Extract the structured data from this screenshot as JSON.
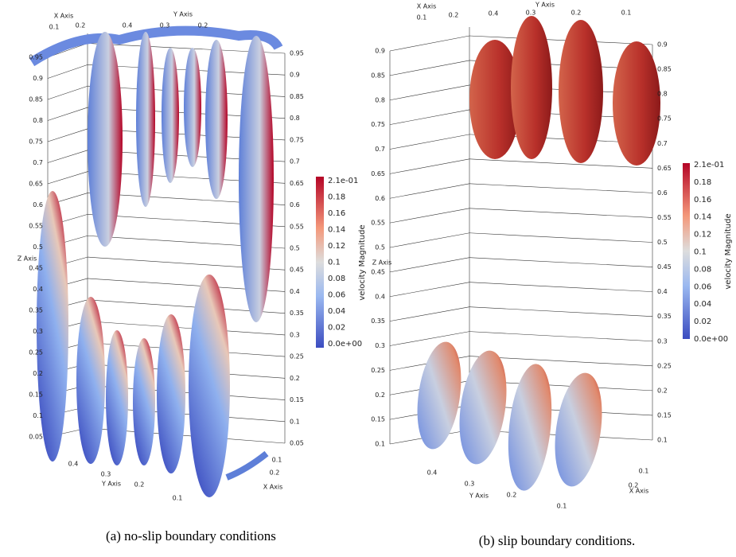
{
  "panels": [
    {
      "caption": "(a) no-slip boundary conditions",
      "axis_titles": {
        "x": "X Axis",
        "y": "Y Axis",
        "z": "Z Axis",
        "x_bottom": "X Axis",
        "y_bottom": "Y Axis"
      },
      "z_ticks_left": [
        "0.05",
        "0.1",
        "0.15",
        "0.2",
        "0.25",
        "0.3",
        "0.35",
        "0.4",
        "0.45",
        "0.5",
        "0.55",
        "0.6",
        "0.65",
        "0.7",
        "0.75",
        "0.8",
        "0.85",
        "0.9",
        "0.95"
      ],
      "z_ticks_right": [
        "0.05",
        "0.1",
        "0.15",
        "0.2",
        "0.25",
        "0.3",
        "0.35",
        "0.4",
        "0.45",
        "0.5",
        "0.55",
        "0.6",
        "0.65",
        "0.7",
        "0.75",
        "0.8",
        "0.85",
        "0.9",
        "0.95"
      ],
      "top_ticks": [
        "0.1",
        "0.2",
        "0.4",
        "0.3",
        "0.2"
      ],
      "bottom_ticks": [
        "0.4",
        "0.3",
        "0.2",
        "0.1",
        "0.1",
        "0.2"
      ],
      "colorbar": {
        "title": "velocity Magnitude",
        "ticks": [
          "2.1e-01",
          "0.18",
          "0.16",
          "0.14",
          "0.12",
          "0.1",
          "0.08",
          "0.06",
          "0.04",
          "0.02",
          "0.0e+00"
        ]
      }
    },
    {
      "caption": "(b) slip boundary conditions.",
      "axis_titles": {
        "x": "X Axis",
        "y": "Y Axis",
        "z": "Z Axis",
        "x_bottom": "X Axis",
        "y_bottom": "Y Axis"
      },
      "z_ticks_left": [
        "0.1",
        "0.15",
        "0.2",
        "0.25",
        "0.3",
        "0.35",
        "0.4",
        "0.45",
        "0.5",
        "0.55",
        "0.6",
        "0.65",
        "0.7",
        "0.75",
        "0.8",
        "0.85",
        "0.9"
      ],
      "z_ticks_right": [
        "0.1",
        "0.15",
        "0.2",
        "0.25",
        "0.3",
        "0.35",
        "0.4",
        "0.45",
        "0.5",
        "0.55",
        "0.6",
        "0.65",
        "0.7",
        "0.75",
        "0.8",
        "0.85",
        "0.9"
      ],
      "top_ticks": [
        "0.1",
        "0.2",
        "0.4",
        "0.3",
        "0.2",
        "0.1"
      ],
      "bottom_ticks": [
        "0.4",
        "0.3",
        "0.2",
        "0.1",
        "0.1",
        "0.2"
      ],
      "colorbar": {
        "title": "velocity Magnitude",
        "ticks": [
          "2.1e-01",
          "0.18",
          "0.16",
          "0.14",
          "0.12",
          "0.1",
          "0.08",
          "0.06",
          "0.04",
          "0.02",
          "0.0e+00"
        ]
      }
    }
  ]
}
